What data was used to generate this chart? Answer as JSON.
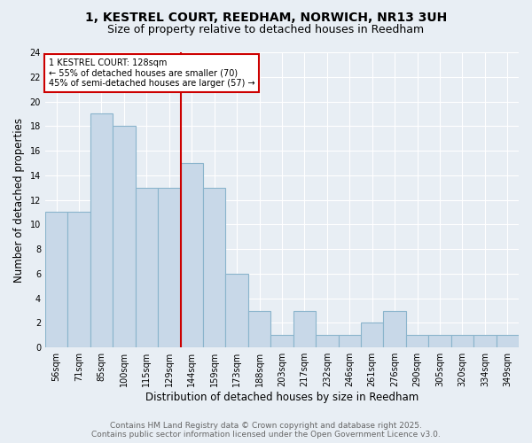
{
  "title": "1, KESTREL COURT, REEDHAM, NORWICH, NR13 3UH",
  "subtitle": "Size of property relative to detached houses in Reedham",
  "xlabel": "Distribution of detached houses by size in Reedham",
  "ylabel": "Number of detached properties",
  "footer1": "Contains HM Land Registry data © Crown copyright and database right 2025.",
  "footer2": "Contains public sector information licensed under the Open Government Licence v3.0.",
  "bar_labels": [
    "56sqm",
    "71sqm",
    "85sqm",
    "100sqm",
    "115sqm",
    "129sqm",
    "144sqm",
    "159sqm",
    "173sqm",
    "188sqm",
    "203sqm",
    "217sqm",
    "232sqm",
    "246sqm",
    "261sqm",
    "276sqm",
    "290sqm",
    "305sqm",
    "320sqm",
    "334sqm",
    "349sqm"
  ],
  "bar_values": [
    11,
    11,
    19,
    18,
    13,
    13,
    15,
    13,
    6,
    3,
    1,
    3,
    1,
    1,
    2,
    3,
    1,
    1,
    1,
    1,
    1
  ],
  "bar_color": "#c8d8e8",
  "bar_edgecolor": "#8ab4cc",
  "vline_position": 5.5,
  "vline_color": "#cc0000",
  "annotation_text": "1 KESTREL COURT: 128sqm\n← 55% of detached houses are smaller (70)\n45% of semi-detached houses are larger (57) →",
  "annotation_box_facecolor": "#ffffff",
  "annotation_box_edgecolor": "#cc0000",
  "ylim": [
    0,
    24
  ],
  "yticks": [
    0,
    2,
    4,
    6,
    8,
    10,
    12,
    14,
    16,
    18,
    20,
    22,
    24
  ],
  "background_color": "#e8eef4",
  "plot_bg_color": "#e8eef4",
  "grid_color": "#ffffff",
  "title_fontsize": 10,
  "subtitle_fontsize": 9,
  "axis_label_fontsize": 8.5,
  "tick_fontsize": 7,
  "footer_fontsize": 6.5,
  "annotation_fontsize": 7
}
